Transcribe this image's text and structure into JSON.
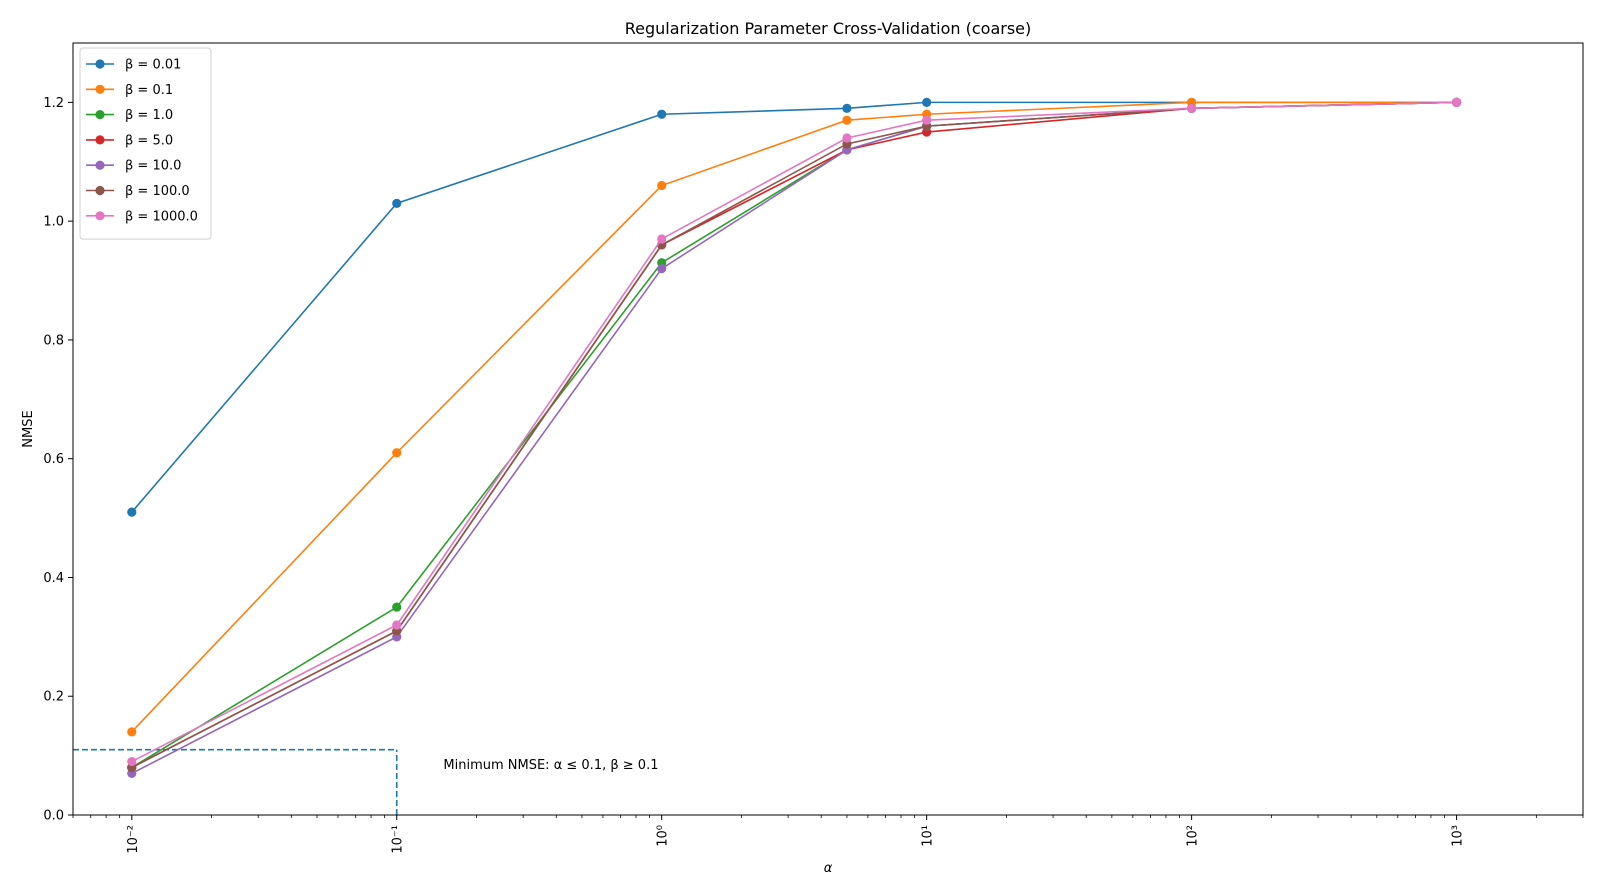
{
  "chart_data": {
    "type": "line",
    "title": "Regularization Parameter Cross-Validation (coarse)",
    "xlabel": "α",
    "ylabel": "NMSE",
    "xscale": "log",
    "xlim": [
      0.006,
      3000
    ],
    "ylim": [
      0.0,
      1.3
    ],
    "x": [
      0.01,
      0.1,
      1,
      5,
      10,
      100,
      1000
    ],
    "xtick_labels": [
      "10⁻²",
      "10⁻¹",
      "10⁰",
      "10¹",
      "10²",
      "10³"
    ],
    "xtick_values": [
      0.01,
      0.1,
      1,
      10,
      100,
      1000
    ],
    "ytick_labels": [
      "0.0",
      "0.2",
      "0.4",
      "0.6",
      "0.8",
      "1.0",
      "1.2"
    ],
    "ytick_values": [
      0.0,
      0.2,
      0.4,
      0.6,
      0.8,
      1.0,
      1.2
    ],
    "grid": false,
    "legend_position": "upper-left",
    "series": [
      {
        "name": "β = 0.01",
        "color": "#1f77b4",
        "values": [
          0.51,
          1.03,
          1.18,
          1.19,
          1.2,
          1.2,
          1.2
        ]
      },
      {
        "name": "β = 0.1",
        "color": "#ff7f0e",
        "values": [
          0.14,
          0.61,
          1.06,
          1.17,
          1.18,
          1.2,
          1.2
        ]
      },
      {
        "name": "β = 1.0",
        "color": "#2ca02c",
        "values": [
          0.08,
          0.35,
          0.93,
          1.12,
          1.16,
          1.19,
          1.2
        ]
      },
      {
        "name": "β = 5.0",
        "color": "#d62728",
        "values": [
          0.08,
          0.31,
          0.96,
          1.12,
          1.15,
          1.19,
          1.2
        ]
      },
      {
        "name": "β = 10.0",
        "color": "#9467bd",
        "values": [
          0.07,
          0.3,
          0.92,
          1.12,
          1.16,
          1.19,
          1.2
        ]
      },
      {
        "name": "β = 100.0",
        "color": "#8c564b",
        "values": [
          0.08,
          0.31,
          0.96,
          1.13,
          1.16,
          1.19,
          1.2
        ]
      },
      {
        "name": "β = 1000.0",
        "color": "#e377c2",
        "values": [
          0.09,
          0.32,
          0.97,
          1.14,
          1.17,
          1.19,
          1.2
        ]
      }
    ],
    "reference_lines": {
      "color": "#1f77b4",
      "style": "dashed",
      "horizontal_y": 0.11,
      "horizontal_x_range": [
        0.006,
        0.1
      ],
      "vertical_x": 0.1,
      "vertical_y_range": [
        0.0,
        0.11
      ]
    },
    "annotation": {
      "text": "Minimum NMSE: α ≤ 0.1, β ≥ 0.1",
      "x": 0.15,
      "y": 0.085
    }
  }
}
